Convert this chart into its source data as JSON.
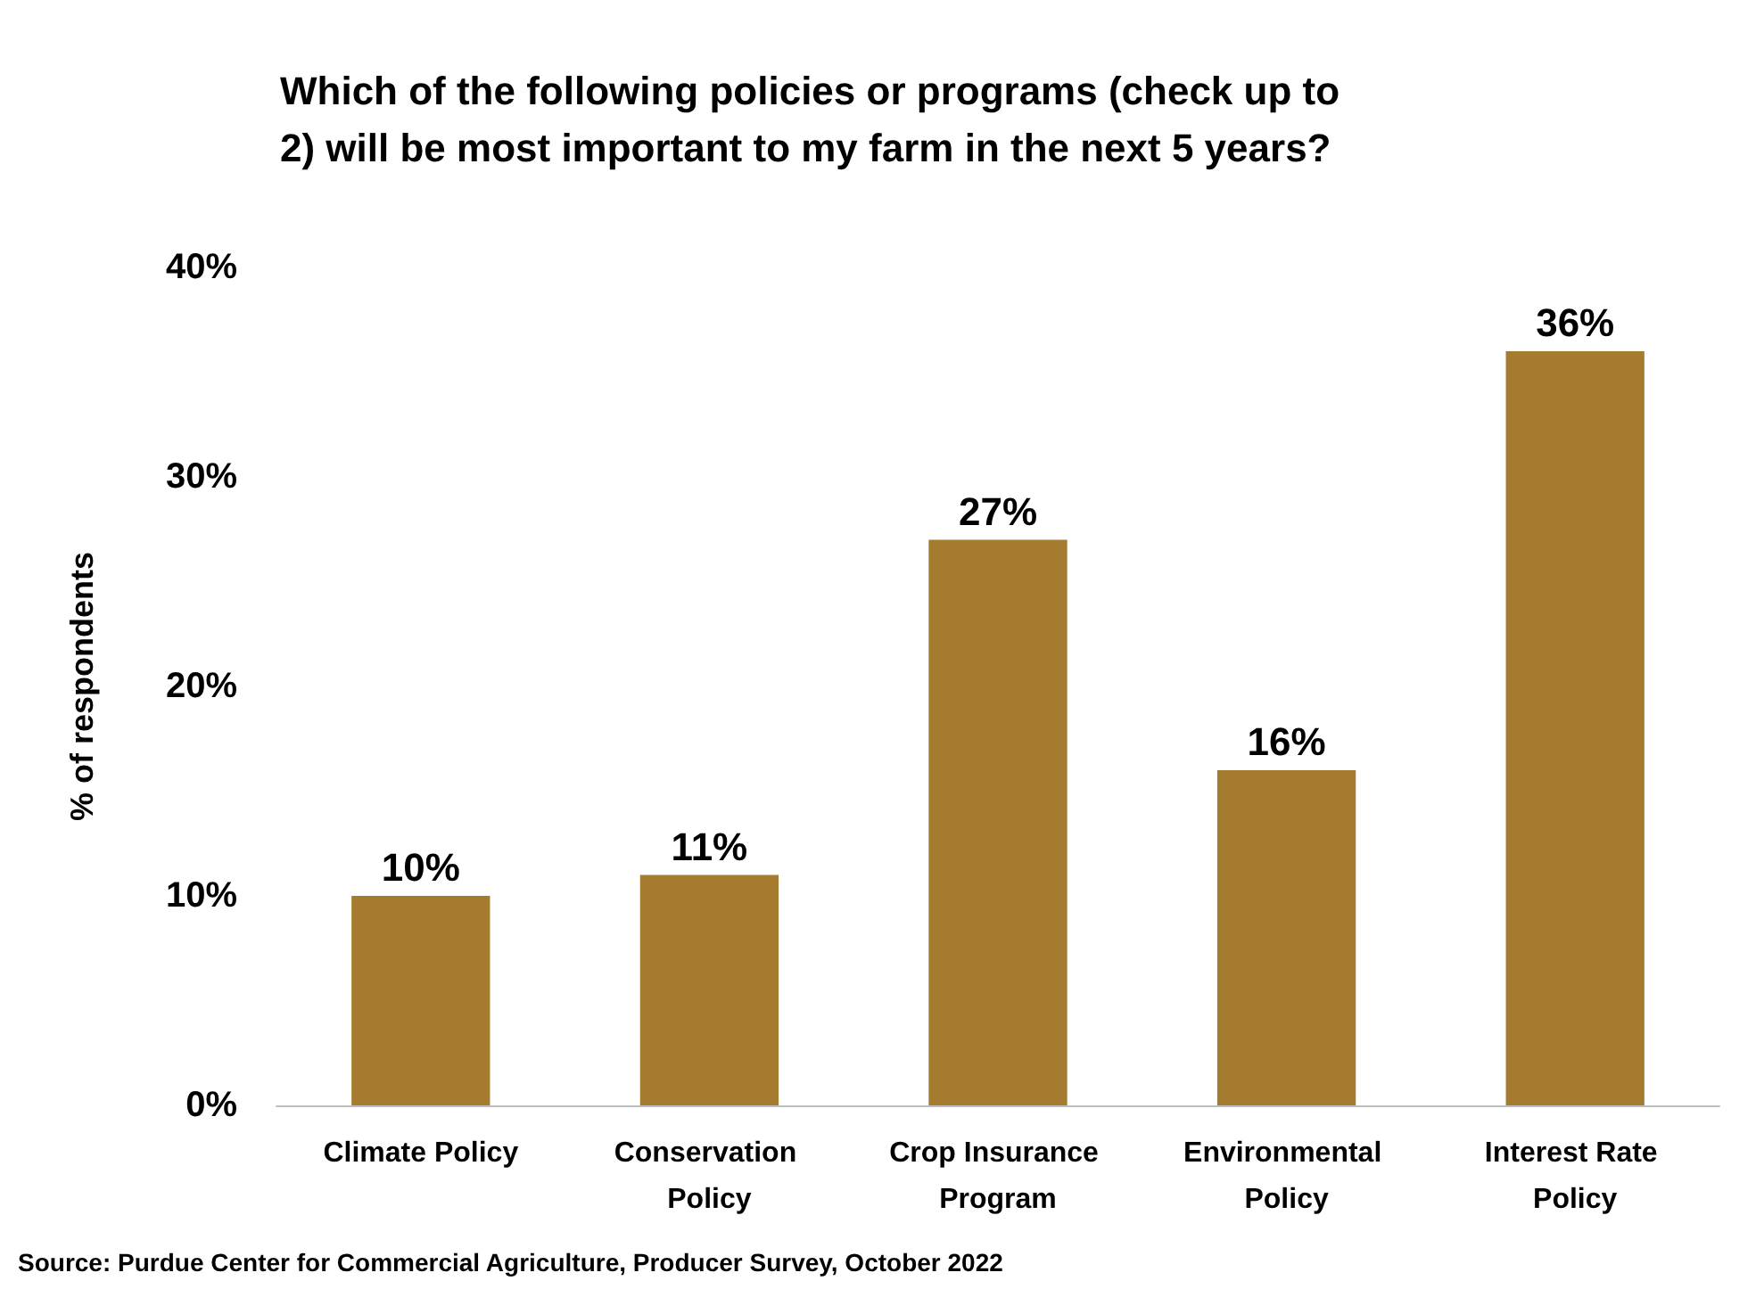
{
  "chart_data": {
    "type": "bar",
    "title": "Which of the following policies or programs (check up to 2) will be most important to my farm in the next 5 years?",
    "ylabel": "% of respondents",
    "categories": [
      "Climate Policy",
      "Conservation Policy",
      "Crop Insurance Program",
      "Environmental Policy",
      "Interest Rate Policy"
    ],
    "values": [
      10,
      11,
      27,
      16,
      36
    ],
    "value_labels": [
      "10%",
      "11%",
      "27%",
      "16%",
      "36%"
    ],
    "color": "#a57c2f",
    "ylim": [
      0,
      40
    ],
    "yticks": [
      {
        "value": 0,
        "label": "0%"
      },
      {
        "value": 10,
        "label": "10%"
      },
      {
        "value": 20,
        "label": "20%"
      },
      {
        "value": 30,
        "label": "30%"
      },
      {
        "value": 40,
        "label": "40%"
      }
    ],
    "grid": false,
    "annotations": [
      "Source: Purdue Center for Commercial Agriculture, Producer Survey, October 2022"
    ]
  }
}
